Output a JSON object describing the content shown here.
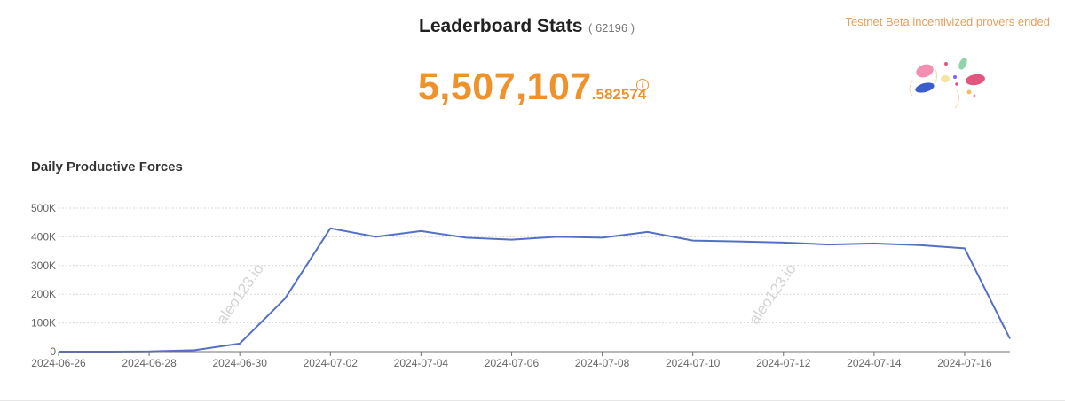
{
  "header": {
    "title": "Leaderboard Stats",
    "count": "( 62196 )"
  },
  "total": {
    "integer_part": "5,507,107",
    "decimal_part": ".582574",
    "info_icon": "info-circle-icon"
  },
  "notice": "Testnet Beta incentivized provers ended",
  "section_title": "Daily Productive Forces",
  "watermark": "aleo123.io",
  "colors": {
    "accent": "#f0922b",
    "notice": "#e4a060",
    "line": "#5470c6"
  },
  "chart_data": {
    "type": "line",
    "title": "Daily Productive Forces",
    "xlabel": "",
    "ylabel": "",
    "x": [
      "2024-06-26",
      "2024-06-27",
      "2024-06-28",
      "2024-06-29",
      "2024-06-30",
      "2024-07-01",
      "2024-07-02",
      "2024-07-03",
      "2024-07-04",
      "2024-07-05",
      "2024-07-06",
      "2024-07-07",
      "2024-07-08",
      "2024-07-09",
      "2024-07-10",
      "2024-07-11",
      "2024-07-12",
      "2024-07-13",
      "2024-07-14",
      "2024-07-15",
      "2024-07-16",
      "2024-07-17"
    ],
    "x_tick_labels": [
      "2024-06-26",
      "2024-06-28",
      "2024-06-30",
      "2024-07-02",
      "2024-07-04",
      "2024-07-06",
      "2024-07-08",
      "2024-07-10",
      "2024-07-12",
      "2024-07-14",
      "2024-07-16"
    ],
    "series": [
      {
        "values": [
          0,
          0,
          500,
          5000,
          28000,
          185000,
          430000,
          400000,
          420000,
          397000,
          390000,
          400000,
          397000,
          417000,
          387000,
          384000,
          380000,
          373000,
          377000,
          371000,
          360000,
          45000
        ]
      }
    ],
    "y_ticks": [
      0,
      100000,
      200000,
      300000,
      400000,
      500000
    ],
    "y_tick_labels": [
      "0",
      "100K",
      "200K",
      "300K",
      "400K",
      "500K"
    ],
    "ylim": [
      0,
      500000
    ],
    "grid": true,
    "legend": "none"
  }
}
